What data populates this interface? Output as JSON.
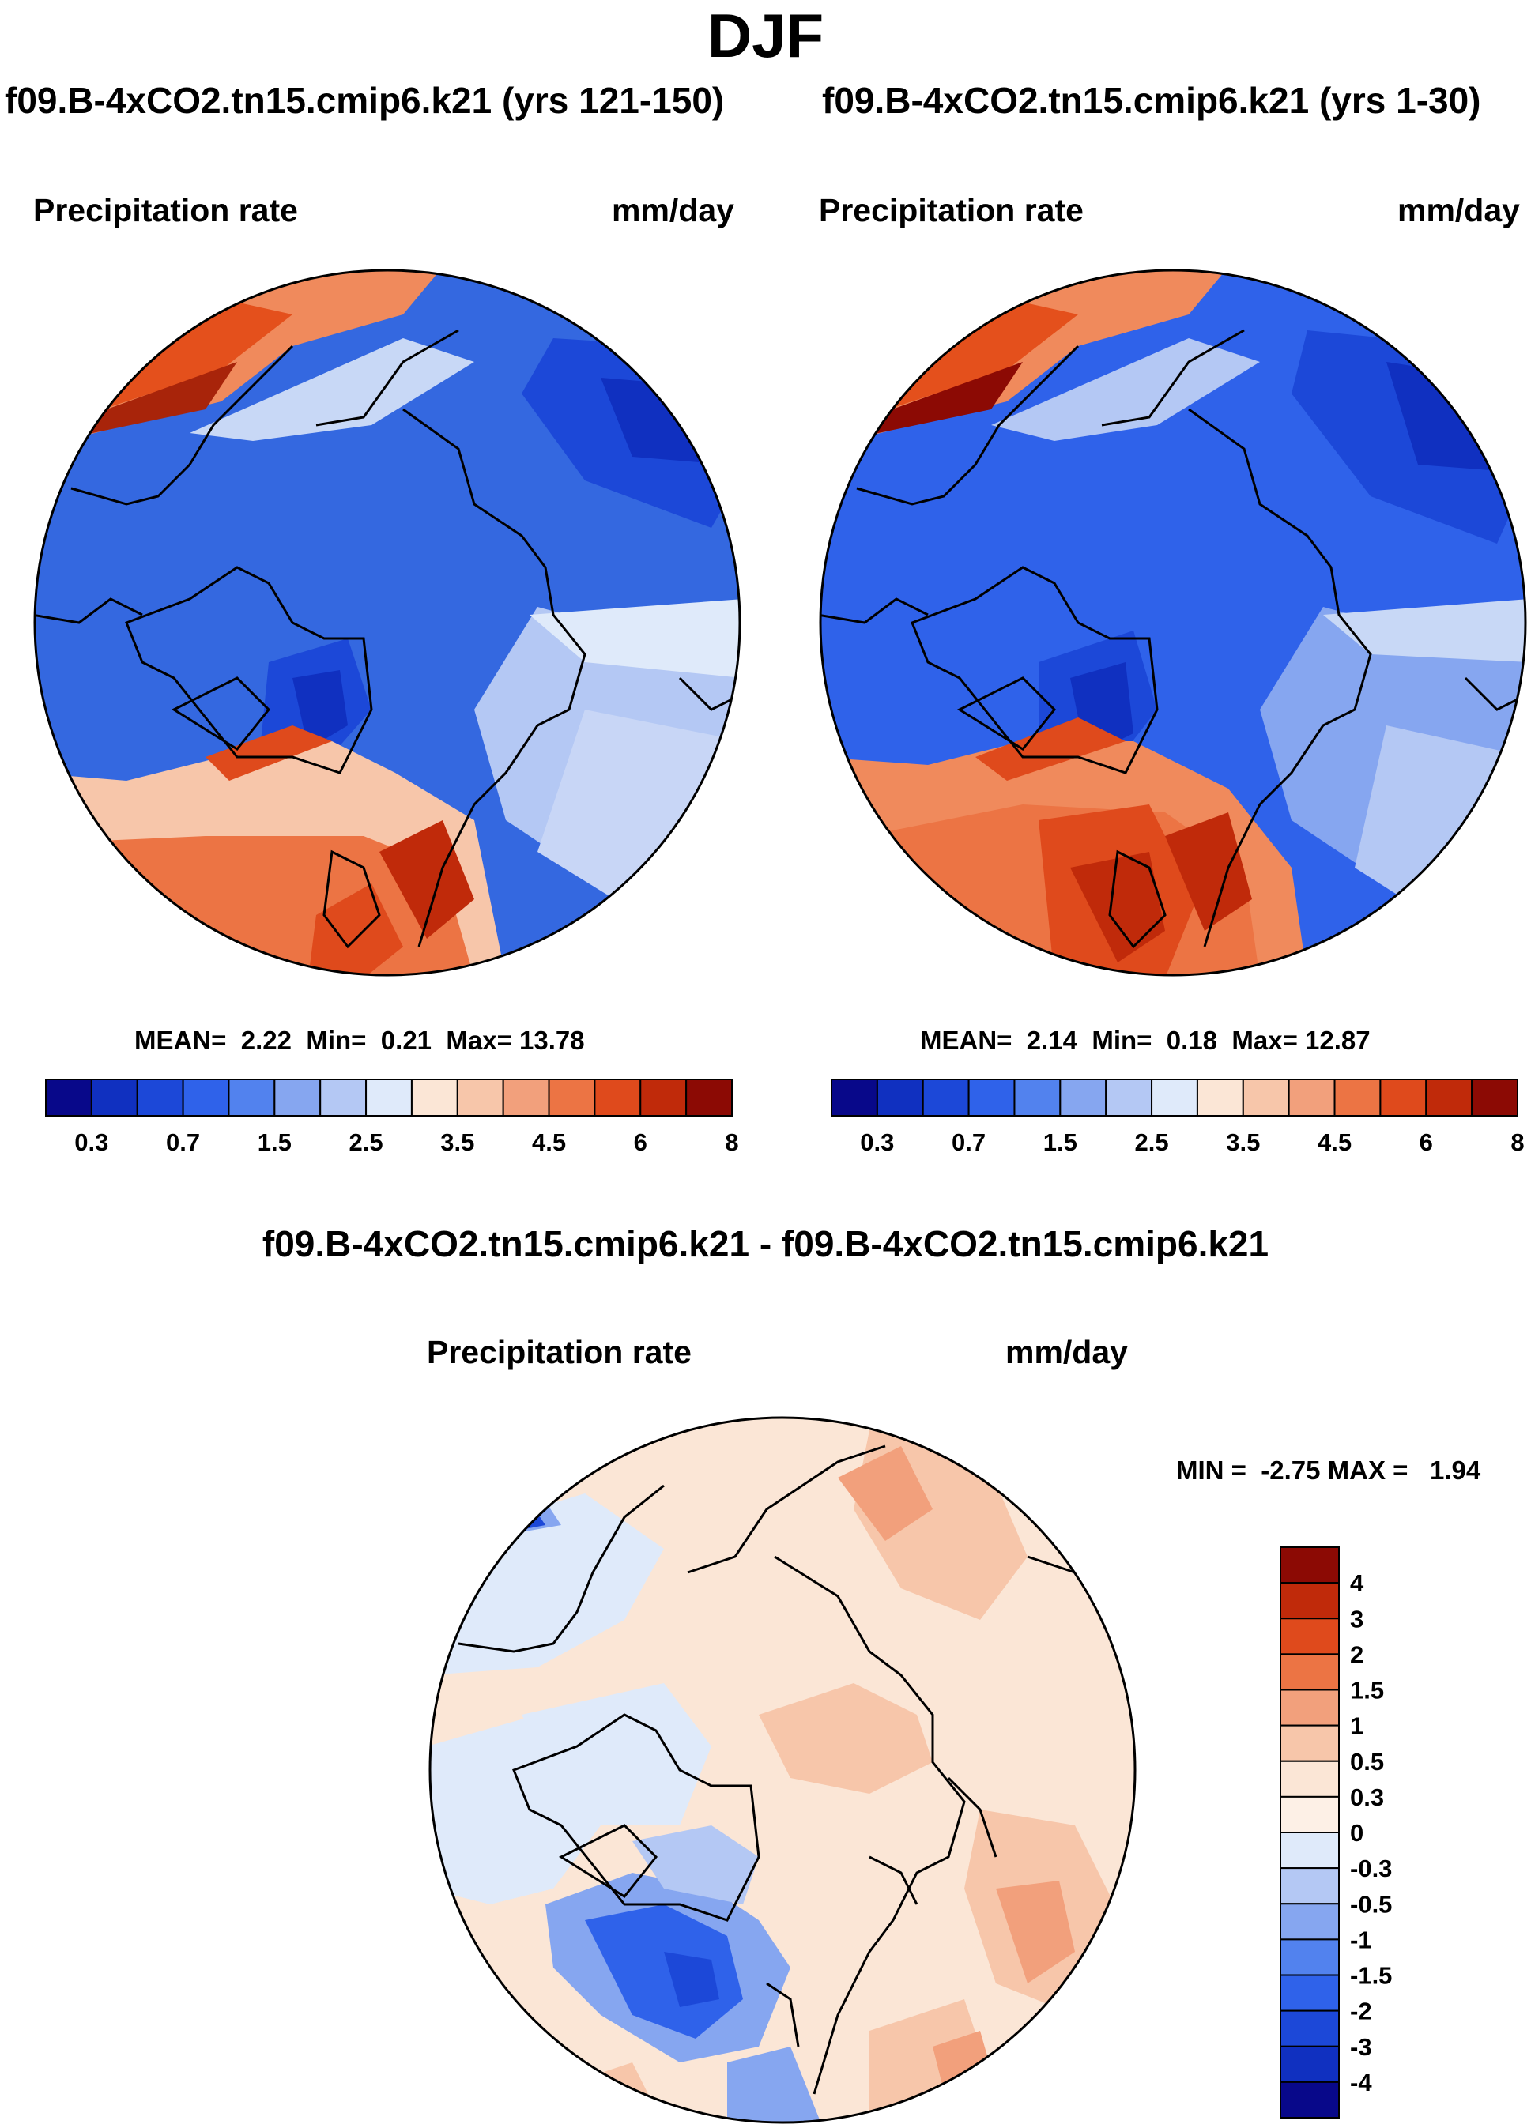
{
  "page_title": "DJF",
  "panels": {
    "left": {
      "title": "f09.B-4xCO2.tn15.cmip6.k21 (yrs 121-150)",
      "variable": "Precipitation rate",
      "units": "mm/day",
      "stats": {
        "mean_label": "MEAN=",
        "mean": "2.22",
        "min_label": "Min=",
        "min": "0.21",
        "max_label": "Max=",
        "max": "13.78"
      }
    },
    "right": {
      "title": "f09.B-4xCO2.tn15.cmip6.k21 (yrs 1-30)",
      "variable": "Precipitation rate",
      "units": "mm/day",
      "stats": {
        "mean_label": "MEAN=",
        "mean": "2.14",
        "min_label": "Min=",
        "min": "0.18",
        "max_label": "Max=",
        "max": "12.87"
      }
    },
    "diff": {
      "title": "f09.B-4xCO2.tn15.cmip6.k21 - f09.B-4xCO2.tn15.cmip6.k21",
      "variable": "Precipitation rate",
      "units": "mm/day",
      "stats": {
        "min_label": "MIN =",
        "min": "-2.75",
        "max_label": "MAX =",
        "max": "1.94"
      }
    }
  },
  "chart_data": [
    {
      "type": "heatmap",
      "projection": "north polar stereographic",
      "title": "f09.B-4xCO2.tn15.cmip6.k21 (yrs 121-150)",
      "variable": "Precipitation rate",
      "units": "mm/day",
      "mean": 2.22,
      "min": 0.21,
      "max": 13.78,
      "colorbar": {
        "orientation": "horizontal",
        "tick_labels": [
          "0.3",
          "0.7",
          "1.5",
          "2.5",
          "3.5",
          "4.5",
          "6",
          "8"
        ],
        "colors": [
          "#08088a",
          "#1030c0",
          "#1c48d8",
          "#2f62ea",
          "#5282ee",
          "#86a6f0",
          "#b4c8f4",
          "#dfeafa",
          "#fbe6d6",
          "#f7c6aa",
          "#f2a07c",
          "#ec7444",
          "#df4a1c",
          "#c02a0a",
          "#8c0a04"
        ]
      }
    },
    {
      "type": "heatmap",
      "projection": "north polar stereographic",
      "title": "f09.B-4xCO2.tn15.cmip6.k21 (yrs 1-30)",
      "variable": "Precipitation rate",
      "units": "mm/day",
      "mean": 2.14,
      "min": 0.18,
      "max": 12.87,
      "colorbar": {
        "orientation": "horizontal",
        "tick_labels": [
          "0.3",
          "0.7",
          "1.5",
          "2.5",
          "3.5",
          "4.5",
          "6",
          "8"
        ],
        "colors": [
          "#08088a",
          "#1030c0",
          "#1c48d8",
          "#2f62ea",
          "#5282ee",
          "#86a6f0",
          "#b4c8f4",
          "#dfeafa",
          "#fbe6d6",
          "#f7c6aa",
          "#f2a07c",
          "#ec7444",
          "#df4a1c",
          "#c02a0a",
          "#8c0a04"
        ]
      }
    },
    {
      "type": "heatmap",
      "projection": "north polar stereographic",
      "title": "f09.B-4xCO2.tn15.cmip6.k21 - f09.B-4xCO2.tn15.cmip6.k21",
      "variable": "Precipitation rate",
      "units": "mm/day",
      "min": -2.75,
      "max": 1.94,
      "colorbar": {
        "orientation": "vertical",
        "tick_labels": [
          "4",
          "3",
          "2",
          "1.5",
          "1",
          "0.5",
          "0.3",
          "0",
          "-0.3",
          "-0.5",
          "-1",
          "-1.5",
          "-2",
          "-3",
          "-4"
        ],
        "colors": [
          "#8c0a04",
          "#c02a0a",
          "#df4a1c",
          "#ec7444",
          "#f2a07c",
          "#f7c6aa",
          "#fbe6d6",
          "#fdf0e6",
          "#dfeafa",
          "#b4c8f4",
          "#86a6f0",
          "#5282ee",
          "#2f62ea",
          "#1c48d8",
          "#1030c0",
          "#08088a"
        ]
      }
    }
  ]
}
